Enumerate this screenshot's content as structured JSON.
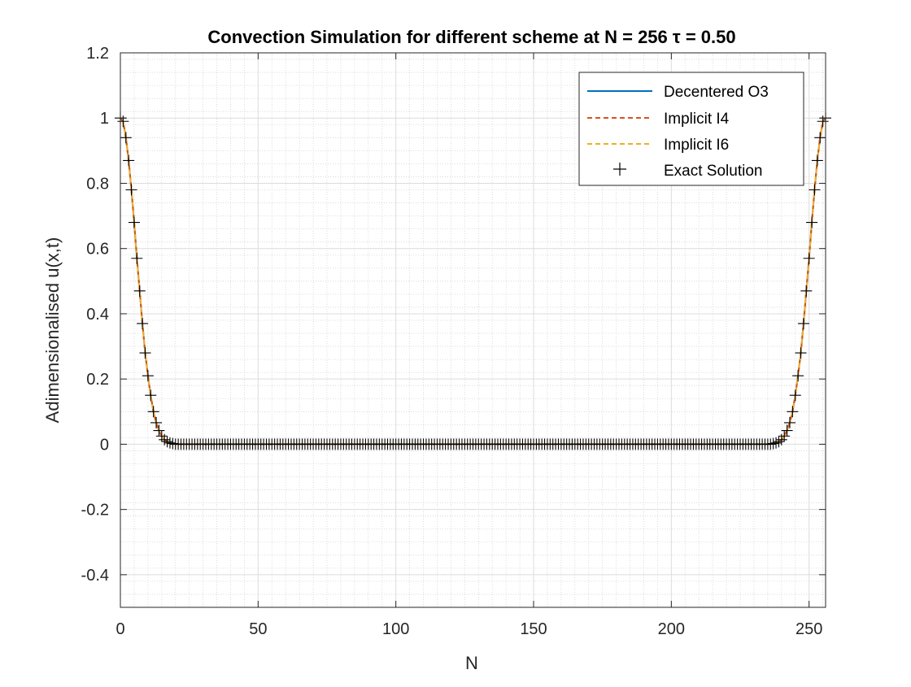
{
  "chart_data": {
    "type": "line",
    "title": "Convection Simulation for different scheme at N = 256 τ = 0.50",
    "xlabel": "N",
    "ylabel": "Adimensionalised u(x,t)",
    "xlim": [
      0,
      256
    ],
    "ylim": [
      -0.5,
      1.2
    ],
    "xticks": [
      0,
      50,
      100,
      150,
      200,
      250
    ],
    "xtick_labels": [
      "0",
      "50",
      "100",
      "150",
      "200",
      "250"
    ],
    "yticks": [
      -0.4,
      -0.2,
      0,
      0.2,
      0.4,
      0.6,
      0.8,
      1,
      1.2
    ],
    "ytick_labels": [
      "-0.4",
      "-0.2",
      "0",
      "0.2",
      "0.4",
      "0.6",
      "0.8",
      "1",
      "1.2"
    ],
    "grid": true,
    "minor_grid": true,
    "legend_position": "top-right",
    "exact_marker_spacing": 1,
    "series": [
      {
        "name": "Decentered O3",
        "style": "solid",
        "color": "#0072BD"
      },
      {
        "name": "Implicit I4",
        "style": "dashed",
        "color": "#D95319"
      },
      {
        "name": "Implicit I6",
        "style": "dashed",
        "color": "#EDB120"
      },
      {
        "name": "Exact Solution",
        "style": "plus-markers",
        "color": "#000000"
      }
    ],
    "x": [
      0,
      1,
      2,
      3,
      4,
      5,
      6,
      7,
      8,
      9,
      10,
      11,
      12,
      13,
      14,
      15,
      16,
      17,
      18,
      20,
      236,
      238,
      239,
      240,
      241,
      242,
      243,
      244,
      245,
      246,
      247,
      248,
      249,
      250,
      251,
      252,
      253,
      254,
      255,
      256
    ],
    "y": [
      1.0,
      0.99,
      0.94,
      0.87,
      0.78,
      0.68,
      0.57,
      0.47,
      0.37,
      0.28,
      0.21,
      0.15,
      0.1,
      0.066,
      0.042,
      0.025,
      0.014,
      0.008,
      0.004,
      0.0,
      0.0,
      0.004,
      0.008,
      0.014,
      0.025,
      0.042,
      0.066,
      0.1,
      0.15,
      0.21,
      0.28,
      0.37,
      0.47,
      0.57,
      0.68,
      0.78,
      0.87,
      0.94,
      0.99,
      1.0
    ]
  }
}
